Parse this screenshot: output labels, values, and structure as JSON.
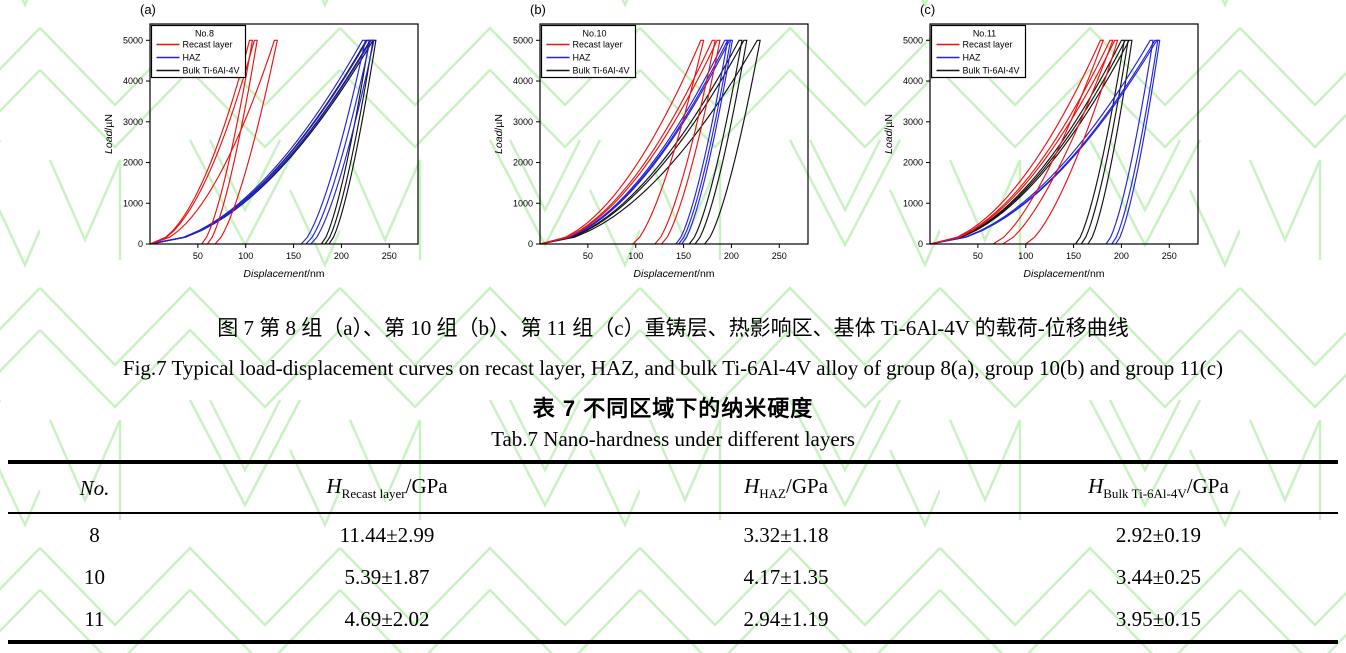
{
  "figure": {
    "caption_zh": "图 7 第 8 组（a）、第 10 组（b）、第 11 组（c）重铸层、热影响区、基体 Ti-6Al-4V 的载荷-位移曲线",
    "caption_en": "Fig.7 Typical load-displacement curves on recast layer, HAZ, and bulk Ti-6Al-4V alloy of group 8(a), group 10(b) and group 11(c)"
  },
  "chart_data": [
    {
      "type": "line",
      "panel": "(a)",
      "legend_title": "No.8",
      "legend_position": "upper left",
      "grid": false,
      "xlabel_italic": "Displacement",
      "xlabel_unit": "/nm",
      "ylabel_italic": "Load",
      "ylabel_unit": "/µN",
      "xlim": [
        0,
        280
      ],
      "ylim": [
        0,
        5400
      ],
      "xticks": [
        50,
        100,
        150,
        200,
        250
      ],
      "yticks": [
        0,
        1000,
        2000,
        3000,
        4000,
        5000
      ],
      "peak_load": 5000,
      "series": [
        {
          "name": "Recast layer",
          "color": "#ee1111",
          "curves": [
            {
              "hmax": 104,
              "hf": 54
            },
            {
              "hmax": 109,
              "hf": 60
            },
            {
              "hmax": 130,
              "hf": 68
            }
          ]
        },
        {
          "name": "HAZ",
          "color": "#2222dd",
          "curves": [
            {
              "hmax": 222,
              "hf": 158
            },
            {
              "hmax": 227,
              "hf": 163
            },
            {
              "hmax": 231,
              "hf": 168
            }
          ]
        },
        {
          "name": "Bulk Ti-6Al-4V",
          "color": "#111111",
          "curves": [
            {
              "hmax": 226,
              "hf": 179
            },
            {
              "hmax": 230,
              "hf": 183
            },
            {
              "hmax": 233,
              "hf": 187
            }
          ]
        }
      ]
    },
    {
      "type": "line",
      "panel": "(b)",
      "legend_title": "No.10",
      "legend_position": "upper left",
      "grid": false,
      "xlabel_italic": "Displacement",
      "xlabel_unit": "/nm",
      "ylabel_italic": "Load",
      "ylabel_unit": "/µN",
      "xlim": [
        0,
        280
      ],
      "ylim": [
        0,
        5400
      ],
      "xticks": [
        50,
        100,
        150,
        200,
        250
      ],
      "yticks": [
        0,
        1000,
        2000,
        3000,
        4000,
        5000
      ],
      "peak_load": 5000,
      "series": [
        {
          "name": "Recast layer",
          "color": "#ee1111",
          "curves": [
            {
              "hmax": 168,
              "hf": 97
            },
            {
              "hmax": 180,
              "hf": 120
            },
            {
              "hmax": 185,
              "hf": 127
            }
          ]
        },
        {
          "name": "HAZ",
          "color": "#2222dd",
          "curves": [
            {
              "hmax": 193,
              "hf": 142
            },
            {
              "hmax": 196,
              "hf": 145
            },
            {
              "hmax": 198,
              "hf": 148
            }
          ]
        },
        {
          "name": "Bulk Ti-6Al-4V",
          "color": "#111111",
          "curves": [
            {
              "hmax": 208,
              "hf": 156
            },
            {
              "hmax": 213,
              "hf": 162
            },
            {
              "hmax": 227,
              "hf": 172
            }
          ]
        }
      ]
    },
    {
      "type": "line",
      "panel": "(c)",
      "legend_title": "No.11",
      "legend_position": "upper left",
      "grid": false,
      "xlabel_italic": "Displacement",
      "xlabel_unit": "/nm",
      "ylabel_italic": "Load",
      "ylabel_unit": "/µN",
      "xlim": [
        0,
        280
      ],
      "ylim": [
        0,
        5400
      ],
      "xticks": [
        50,
        100,
        150,
        200,
        250
      ],
      "yticks": [
        0,
        1000,
        2000,
        3000,
        4000,
        5000
      ],
      "peak_load": 5000,
      "series": [
        {
          "name": "Recast layer",
          "color": "#ee1111",
          "curves": [
            {
              "hmax": 178,
              "hf": 66
            },
            {
              "hmax": 188,
              "hf": 76
            },
            {
              "hmax": 193,
              "hf": 100
            }
          ]
        },
        {
          "name": "HAZ",
          "color": "#2222dd",
          "curves": [
            {
              "hmax": 230,
              "hf": 184
            },
            {
              "hmax": 235,
              "hf": 190
            },
            {
              "hmax": 237,
              "hf": 194
            }
          ]
        },
        {
          "name": "Bulk Ti-6Al-4V",
          "color": "#111111",
          "curves": [
            {
              "hmax": 200,
              "hf": 152
            },
            {
              "hmax": 204,
              "hf": 158
            },
            {
              "hmax": 208,
              "hf": 165
            }
          ]
        }
      ]
    }
  ],
  "table": {
    "title_zh": "表 7 不同区域下的纳米硬度",
    "title_en": "Tab.7 Nano-hardness under different layers",
    "columns": [
      {
        "label": "No."
      },
      {
        "symbol": "H",
        "sub": "Recast layer",
        "unit": "/GPa"
      },
      {
        "symbol": "H",
        "sub": "HAZ",
        "unit": "/GPa"
      },
      {
        "symbol": "H",
        "sub": "Bulk Ti-6Al-4V",
        "unit": "/GPa"
      }
    ],
    "rows": [
      [
        "8",
        "11.44±2.99",
        "3.32±1.18",
        "2.92±0.19"
      ],
      [
        "10",
        "5.39±1.87",
        "4.17±1.35",
        "3.44±0.25"
      ],
      [
        "11",
        "4.69±2.02",
        "2.94±1.19",
        "3.95±0.15"
      ]
    ]
  },
  "watermark": {
    "color": "#c9f2c2"
  }
}
